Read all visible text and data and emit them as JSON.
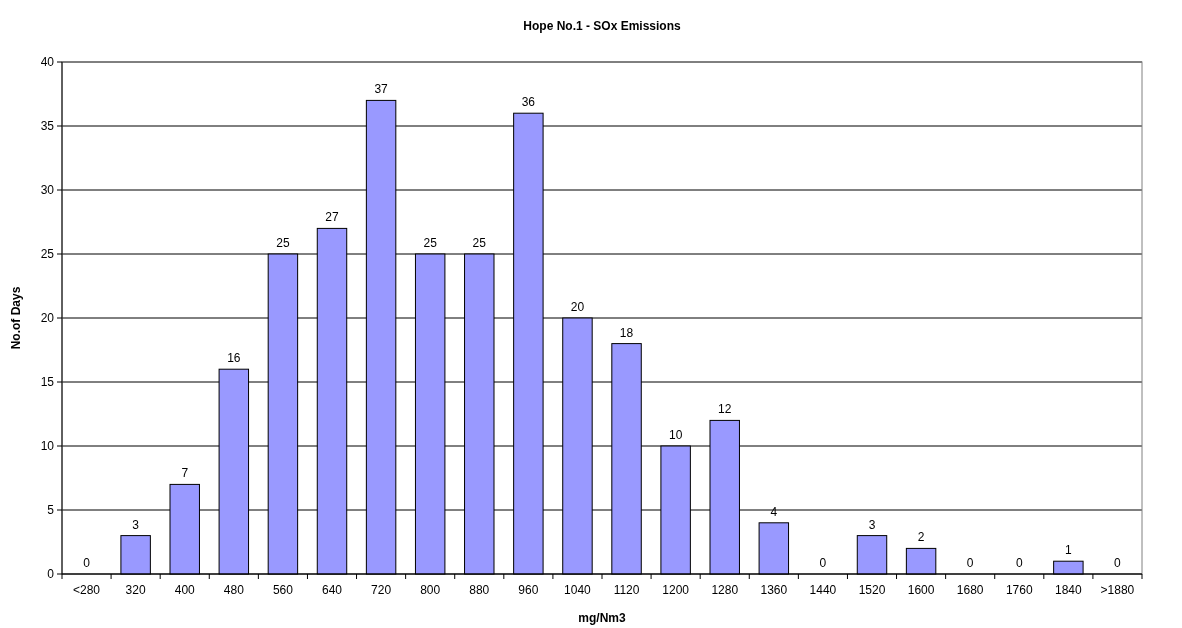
{
  "chart_data": {
    "type": "bar",
    "title": "Hope No.1 - SOx Emissions",
    "xlabel": "mg/Nm3",
    "ylabel": "No.of Days",
    "categories": [
      "<280",
      "320",
      "400",
      "480",
      "560",
      "640",
      "720",
      "800",
      "880",
      "960",
      "1040",
      "1120",
      "1200",
      "1280",
      "1360",
      "1440",
      "1520",
      "1600",
      "1680",
      "1760",
      "1840",
      ">1880"
    ],
    "values": [
      0,
      3,
      7,
      16,
      25,
      27,
      37,
      25,
      25,
      36,
      20,
      18,
      10,
      12,
      4,
      0,
      3,
      2,
      0,
      0,
      1,
      0
    ],
    "color": "#9999ff",
    "ylim": [
      0,
      40
    ],
    "yticks": [
      0,
      5,
      10,
      15,
      20,
      25,
      30,
      35,
      40
    ],
    "grid": "y",
    "data_labels": true
  }
}
